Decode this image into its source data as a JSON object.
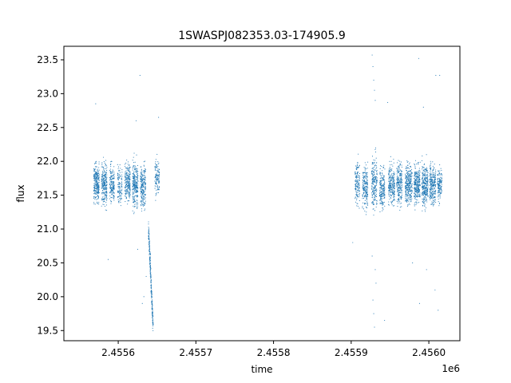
{
  "chart_data": {
    "type": "scatter",
    "title": "1SWASPJ082353.03-174905.9",
    "xlabel": "time",
    "ylabel": "flux",
    "x_offset_label": "1e6",
    "xlim": [
      2.45553,
      2.45604
    ],
    "ylim": [
      19.35,
      23.7
    ],
    "x_ticks": [
      2.4556,
      2.4557,
      2.4558,
      2.4559,
      2.456
    ],
    "x_tick_labels": [
      "2.4556",
      "2.4557",
      "2.4558",
      "2.4559",
      "2.4560"
    ],
    "y_ticks": [
      19.5,
      20.0,
      20.5,
      21.0,
      21.5,
      22.0,
      22.5,
      23.0,
      23.5
    ],
    "y_tick_labels": [
      "19.5",
      "20.0",
      "20.5",
      "21.0",
      "21.5",
      "22.0",
      "22.5",
      "23.0",
      "23.5"
    ],
    "grid": false,
    "point_color": "#1f77b4",
    "clusters": [
      {
        "x_center": 2.455572,
        "x_width": 3.5e-06,
        "y_center": 21.68,
        "y_spread": 0.27,
        "count": 260
      },
      {
        "x_center": 2.455582,
        "x_width": 3.5e-06,
        "y_center": 21.66,
        "y_spread": 0.3,
        "count": 250
      },
      {
        "x_center": 2.455592,
        "x_width": 3e-06,
        "y_center": 21.66,
        "y_spread": 0.27,
        "count": 170
      },
      {
        "x_center": 2.455602,
        "x_width": 3e-06,
        "y_center": 21.64,
        "y_spread": 0.25,
        "count": 110
      },
      {
        "x_center": 2.455612,
        "x_width": 3.5e-06,
        "y_center": 21.7,
        "y_spread": 0.28,
        "count": 220
      },
      {
        "x_center": 2.455622,
        "x_width": 3.5e-06,
        "y_center": 21.65,
        "y_spread": 0.32,
        "count": 260
      },
      {
        "x_center": 2.455632,
        "x_width": 3.5e-06,
        "y_center": 21.63,
        "y_spread": 0.3,
        "count": 230
      },
      {
        "x_center": 2.45565,
        "x_width": 3e-06,
        "y_center": 21.75,
        "y_spread": 0.25,
        "count": 120
      },
      {
        "x_center": 2.455908,
        "x_width": 3e-06,
        "y_center": 21.68,
        "y_spread": 0.3,
        "count": 150
      },
      {
        "x_center": 2.455918,
        "x_width": 3.5e-06,
        "y_center": 21.62,
        "y_spread": 0.32,
        "count": 200
      },
      {
        "x_center": 2.45593,
        "x_width": 3.5e-06,
        "y_center": 21.68,
        "y_spread": 0.36,
        "count": 220
      },
      {
        "x_center": 2.45594,
        "x_width": 3.5e-06,
        "y_center": 21.6,
        "y_spread": 0.3,
        "count": 200
      },
      {
        "x_center": 2.455952,
        "x_width": 4e-06,
        "y_center": 21.65,
        "y_spread": 0.28,
        "count": 240
      },
      {
        "x_center": 2.455962,
        "x_width": 3.5e-06,
        "y_center": 21.68,
        "y_spread": 0.3,
        "count": 220
      },
      {
        "x_center": 2.455974,
        "x_width": 4.5e-06,
        "y_center": 21.66,
        "y_spread": 0.28,
        "count": 300
      },
      {
        "x_center": 2.455985,
        "x_width": 4e-06,
        "y_center": 21.67,
        "y_spread": 0.28,
        "count": 280
      },
      {
        "x_center": 2.455995,
        "x_width": 4e-06,
        "y_center": 21.64,
        "y_spread": 0.3,
        "count": 280
      },
      {
        "x_center": 2.456005,
        "x_width": 4e-06,
        "y_center": 21.65,
        "y_spread": 0.3,
        "count": 260
      },
      {
        "x_center": 2.456014,
        "x_width": 3e-06,
        "y_center": 21.66,
        "y_spread": 0.25,
        "count": 140
      }
    ],
    "dip": {
      "x_start": 2.455639,
      "x_end": 2.455645,
      "y_start": 21.0,
      "y_end": 19.55,
      "y_spread": 0.15,
      "count": 260
    },
    "outliers": [
      {
        "x": 2.455571,
        "y": 22.85
      },
      {
        "x": 2.455587,
        "y": 20.55
      },
      {
        "x": 2.455623,
        "y": 22.6
      },
      {
        "x": 2.455625,
        "y": 20.7
      },
      {
        "x": 2.455628,
        "y": 23.27
      },
      {
        "x": 2.455633,
        "y": 20.0
      },
      {
        "x": 2.455631,
        "y": 19.9
      },
      {
        "x": 2.455636,
        "y": 20.3
      },
      {
        "x": 2.455652,
        "y": 22.65
      },
      {
        "x": 2.455927,
        "y": 23.57
      },
      {
        "x": 2.455928,
        "y": 23.4
      },
      {
        "x": 2.455929,
        "y": 23.2
      },
      {
        "x": 2.455931,
        "y": 22.9
      },
      {
        "x": 2.45593,
        "y": 23.05
      },
      {
        "x": 2.455928,
        "y": 19.95
      },
      {
        "x": 2.455929,
        "y": 19.75
      },
      {
        "x": 2.45593,
        "y": 19.55
      },
      {
        "x": 2.455931,
        "y": 20.4
      },
      {
        "x": 2.455927,
        "y": 20.6
      },
      {
        "x": 2.455932,
        "y": 20.2
      },
      {
        "x": 2.455947,
        "y": 22.87
      },
      {
        "x": 2.455943,
        "y": 19.65
      },
      {
        "x": 2.455987,
        "y": 23.52
      },
      {
        "x": 2.455988,
        "y": 19.9
      },
      {
        "x": 2.455993,
        "y": 22.8
      },
      {
        "x": 2.456008,
        "y": 20.1
      },
      {
        "x": 2.456009,
        "y": 23.27
      },
      {
        "x": 2.456014,
        "y": 23.27
      },
      {
        "x": 2.456012,
        "y": 19.8
      },
      {
        "x": 2.455997,
        "y": 20.4
      },
      {
        "x": 2.455902,
        "y": 20.8
      },
      {
        "x": 2.455979,
        "y": 20.5
      }
    ]
  }
}
